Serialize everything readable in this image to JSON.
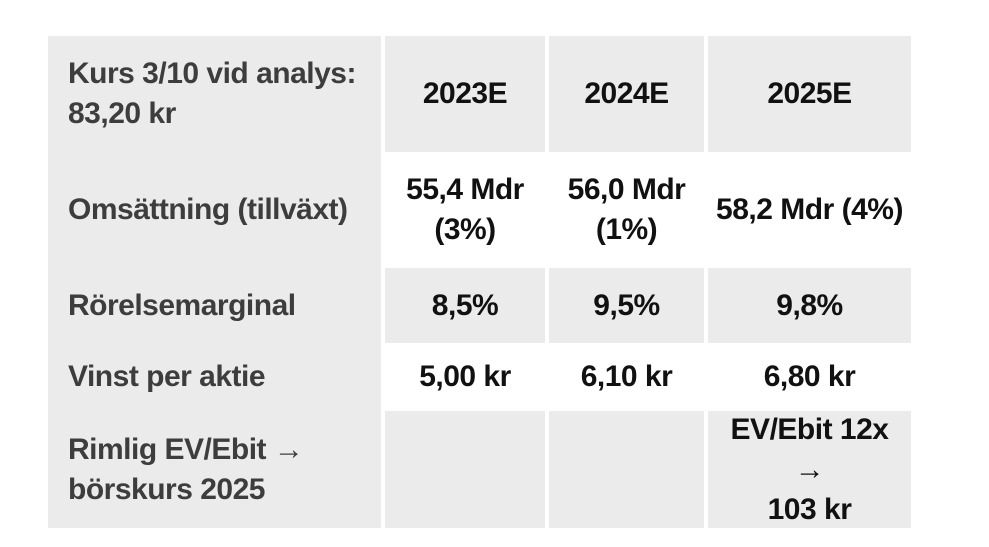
{
  "table": {
    "colors": {
      "page_bg": "#ffffff",
      "cell_bg": "#ebebeb",
      "label_text": "#3d3d3d",
      "value_text": "#111111"
    },
    "header": {
      "row_label": "Kurs 3/10 vid analys:\n83,20 kr",
      "columns": [
        "2023E",
        "2024E",
        "2025E"
      ]
    },
    "rows": [
      {
        "label": "Omsättning (tillväxt)",
        "values": [
          "55,4 Mdr\n(3%)",
          "56,0 Mdr\n(1%)",
          "58,2 Mdr (4%)"
        ]
      },
      {
        "label": "Rörelsemarginal",
        "values": [
          "8,5%",
          "9,5%",
          "9,8%"
        ]
      },
      {
        "label": "Vinst per aktie",
        "values": [
          "5,00 kr",
          "6,10 kr",
          "6,80 kr"
        ]
      },
      {
        "label": "Rimlig EV/Ebit →\nbörskurs 2025",
        "values": [
          "",
          "",
          "EV/Ebit 12x →\n103 kr"
        ]
      }
    ]
  },
  "chart_data": {
    "type": "table",
    "title": "",
    "columns": [
      "Kurs 3/10 vid analys: 83,20 kr",
      "2023E",
      "2024E",
      "2025E"
    ],
    "rows": [
      [
        "Omsättning (tillväxt)",
        "55,4 Mdr (3%)",
        "56,0 Mdr (1%)",
        "58,2 Mdr (4%)"
      ],
      [
        "Rörelsemarginal",
        "8,5%",
        "9,5%",
        "9,8%"
      ],
      [
        "Vinst per aktie",
        "5,00 kr",
        "6,10 kr",
        "6,80 kr"
      ],
      [
        "Rimlig EV/Ebit → börskurs 2025",
        "",
        "",
        "EV/Ebit 12x → 103 kr"
      ]
    ]
  }
}
